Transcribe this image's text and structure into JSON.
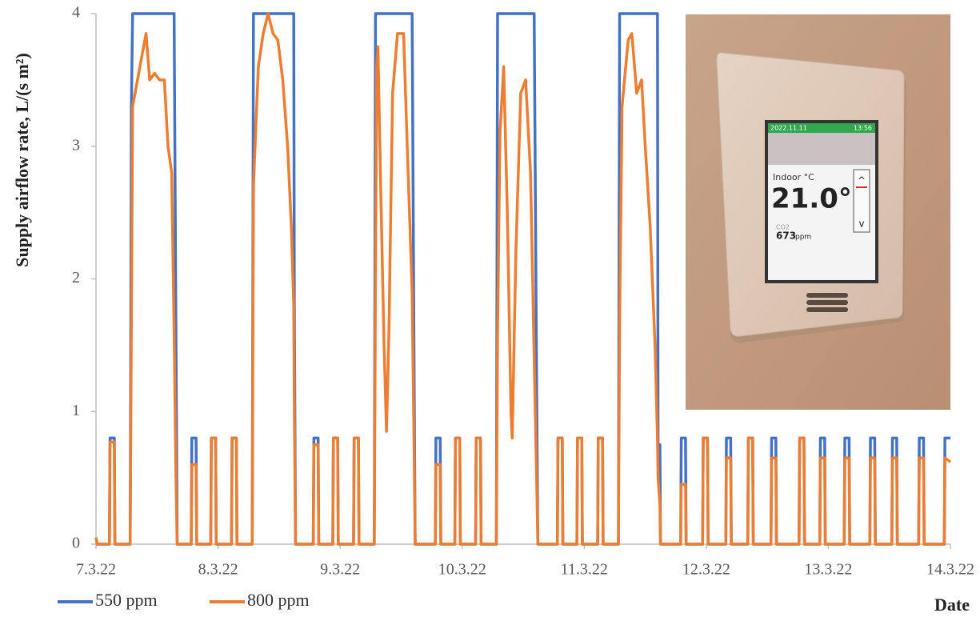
{
  "chart_data": {
    "type": "line",
    "y_label": "Supply airflow rate, L/(s m²)",
    "x_label": "Date",
    "xlim": [
      0,
      7
    ],
    "xticks": [
      {
        "value": 0,
        "label": "7.3.22"
      },
      {
        "value": 1,
        "label": "8.3.22"
      },
      {
        "value": 2,
        "label": "9.3.22"
      },
      {
        "value": 3,
        "label": "10.3.22"
      },
      {
        "value": 4,
        "label": "11.3.22"
      },
      {
        "value": 5,
        "label": "12.3.22"
      },
      {
        "value": 6,
        "label": "13.3.22"
      },
      {
        "value": 7,
        "label": "14.3.22"
      }
    ],
    "ylim": [
      0,
      4
    ],
    "yticks": [
      0,
      1,
      2,
      3,
      4
    ],
    "x": [
      0,
      0.01,
      0.11,
      0.115,
      0.15,
      0.155,
      0.28,
      0.29,
      0.3,
      0.34,
      0.38,
      0.41,
      0.44,
      0.48,
      0.52,
      0.56,
      0.59,
      0.62,
      0.64,
      0.655,
      0.665,
      0.78,
      0.785,
      0.82,
      0.825,
      0.94,
      0.945,
      0.98,
      0.985,
      1.11,
      1.115,
      1.15,
      1.155,
      1.28,
      1.29,
      1.33,
      1.37,
      1.41,
      1.45,
      1.49,
      1.53,
      1.57,
      1.6,
      1.62,
      1.625,
      1.635,
      1.78,
      1.785,
      1.82,
      1.825,
      1.94,
      1.945,
      1.98,
      1.985,
      2.11,
      2.115,
      2.15,
      2.155,
      2.28,
      2.29,
      2.3,
      2.31,
      2.33,
      2.36,
      2.38,
      2.4,
      2.43,
      2.47,
      2.52,
      2.55,
      2.59,
      2.605,
      2.615,
      2.78,
      2.785,
      2.82,
      2.825,
      2.94,
      2.945,
      2.98,
      2.985,
      3.11,
      3.115,
      3.15,
      3.155,
      3.28,
      3.29,
      3.31,
      3.34,
      3.37,
      3.4,
      3.41,
      3.44,
      3.48,
      3.52,
      3.56,
      3.59,
      3.61,
      3.62,
      3.78,
      3.785,
      3.82,
      3.825,
      3.94,
      3.945,
      3.98,
      3.985,
      4.11,
      4.115,
      4.15,
      4.155,
      4.28,
      4.29,
      4.31,
      4.36,
      4.39,
      4.43,
      4.47,
      4.5,
      4.54,
      4.58,
      4.6,
      4.605,
      4.62,
      4.625,
      4.79,
      4.795,
      4.83,
      4.835,
      4.97,
      4.975,
      5.01,
      5.015,
      5.16,
      5.165,
      5.2,
      5.205,
      5.34,
      5.345,
      5.38,
      5.385,
      5.53,
      5.535,
      5.57,
      5.575,
      5.76,
      5.765,
      5.8,
      5.805,
      5.93,
      5.935,
      5.97,
      5.975,
      6.13,
      6.135,
      6.17,
      6.175,
      6.34,
      6.345,
      6.38,
      6.385,
      6.52,
      6.525,
      6.56,
      6.565,
      6.74,
      6.745,
      6.78,
      6.785,
      6.95,
      6.955,
      7.0
    ],
    "series": [
      {
        "name": "550 ppm",
        "color": "#4472c4",
        "values": [
          0.05,
          0,
          0,
          0.8,
          0.8,
          0,
          0,
          3.3,
          4,
          4,
          4,
          4,
          4,
          4,
          4,
          4,
          4,
          4,
          4,
          1.6,
          0,
          0,
          0.8,
          0.8,
          0,
          0,
          0.8,
          0.8,
          0,
          0,
          0.8,
          0.8,
          0,
          0,
          4,
          4,
          4,
          4,
          4,
          4,
          4,
          4,
          4,
          4,
          1.8,
          0,
          0,
          0.8,
          0.8,
          0,
          0,
          0.8,
          0.8,
          0,
          0,
          0.8,
          0.8,
          0,
          0,
          4,
          4,
          4,
          4,
          4,
          4,
          4,
          4,
          4,
          4,
          4,
          4,
          1.5,
          0,
          0,
          0.8,
          0.8,
          0,
          0,
          0.8,
          0.8,
          0,
          0,
          0.8,
          0.8,
          0,
          0,
          4,
          4,
          4,
          4,
          4,
          4,
          4,
          4,
          4,
          4,
          4,
          1.2,
          0,
          0,
          0.8,
          0.8,
          0,
          0,
          0.8,
          0.8,
          0,
          0,
          0.8,
          0.8,
          0,
          0,
          4,
          4,
          4,
          4,
          4,
          4,
          4,
          4,
          4,
          4,
          0.75,
          0.75,
          0,
          0,
          0.8,
          0.8,
          0,
          0,
          0.8,
          0.8,
          0,
          0,
          0.8,
          0.8,
          0,
          0,
          0.8,
          0.8,
          0,
          0,
          0.8,
          0.8,
          0,
          0,
          0.8,
          0.8,
          0,
          0,
          0.8,
          0.8,
          0,
          0,
          0.8,
          0.8,
          0,
          0,
          0.8,
          0.8,
          0,
          0,
          0.8,
          0.8,
          0,
          0,
          0.8,
          0.8,
          0,
          0,
          0.8,
          0.8
        ]
      },
      {
        "name": "800 ppm",
        "color": "#ed7d31",
        "values": [
          0.05,
          0,
          0,
          0.77,
          0.77,
          0,
          0,
          1.7,
          3.3,
          3.5,
          3.7,
          3.85,
          3.5,
          3.55,
          3.5,
          3.5,
          3.0,
          2.8,
          1.6,
          0.5,
          0,
          0,
          0.6,
          0.6,
          0,
          0,
          0.8,
          0.8,
          0,
          0,
          0.8,
          0.8,
          0,
          0,
          2.7,
          3.6,
          3.85,
          4,
          3.85,
          3.8,
          3.5,
          3.0,
          2.4,
          1.8,
          1.0,
          0,
          0,
          0.75,
          0.75,
          0,
          0,
          0.8,
          0.8,
          0,
          0,
          0.8,
          0.8,
          0,
          0,
          2.0,
          3.6,
          3.75,
          2.8,
          1.5,
          0.85,
          1.6,
          3.4,
          3.85,
          3.85,
          3.0,
          1.9,
          0.8,
          0,
          0,
          0.6,
          0.6,
          0,
          0,
          0.8,
          0.8,
          0,
          0,
          0.8,
          0.8,
          0,
          0,
          1.6,
          3.1,
          3.6,
          2.5,
          1.0,
          0.8,
          2.2,
          3.4,
          3.5,
          2.8,
          1.4,
          0.5,
          0,
          0,
          0.8,
          0.8,
          0,
          0,
          0.8,
          0.8,
          0,
          0,
          0.8,
          0.8,
          0,
          0,
          1.7,
          3.3,
          3.8,
          3.85,
          3.4,
          3.5,
          3.0,
          2.4,
          1.5,
          0.8,
          0.5,
          0.3,
          0,
          0,
          0.45,
          0.45,
          0,
          0,
          0.8,
          0.8,
          0,
          0,
          0.65,
          0.65,
          0,
          0,
          0.8,
          0.8,
          0,
          0,
          0.65,
          0.65,
          0,
          0,
          0.8,
          0.8,
          0,
          0,
          0.65,
          0.65,
          0,
          0,
          0.65,
          0.65,
          0,
          0,
          0.65,
          0.65,
          0,
          0,
          0.65,
          0.65,
          0,
          0,
          0.65,
          0.65,
          0,
          0,
          0.65,
          0.62
        ]
      }
    ]
  },
  "photo": {
    "date": "2022.11.11",
    "time": "13:56",
    "label": "Indoor °C",
    "temperature": "21.0°",
    "co2_label": "CO2",
    "co2_value": "673",
    "co2_unit": "ppm",
    "up": "^",
    "down": "v"
  }
}
